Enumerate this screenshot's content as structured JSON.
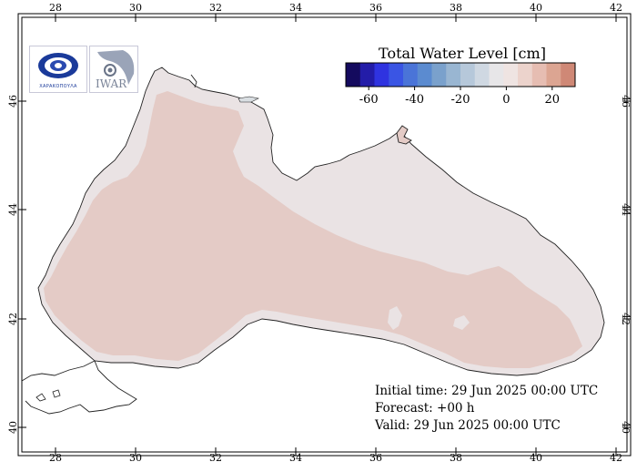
{
  "map": {
    "lon_ticks": [
      "28",
      "30",
      "32",
      "34",
      "36",
      "38",
      "40",
      "42"
    ],
    "lat_ticks": [
      "40",
      "42",
      "44",
      "46"
    ]
  },
  "legend": {
    "title": "Total Water Level [cm]",
    "tick_labels": [
      "-60",
      "-40",
      "-20",
      "0",
      "20"
    ],
    "colors": [
      "#140a5e",
      "#231ca8",
      "#2f33e0",
      "#3a55e4",
      "#4a74d8",
      "#5b8bd0",
      "#7aa1cc",
      "#99b6d2",
      "#b6c8da",
      "#cfd8e2",
      "#e7e6e8",
      "#efe4e2",
      "#ecd3cc",
      "#e6bdb2",
      "#dca592",
      "#cf8876"
    ]
  },
  "logos": {
    "left_text": "ΧΑΡΑΚΟΠΟΥΛΑ",
    "right_text": "IWAR"
  },
  "info": {
    "initial": "Initial time: 29 Jun 2025 00:00 UTC",
    "forecast": "Forecast: +00 h",
    "valid": "Valid: 29 Jun 2025 00:00 UTC"
  }
}
